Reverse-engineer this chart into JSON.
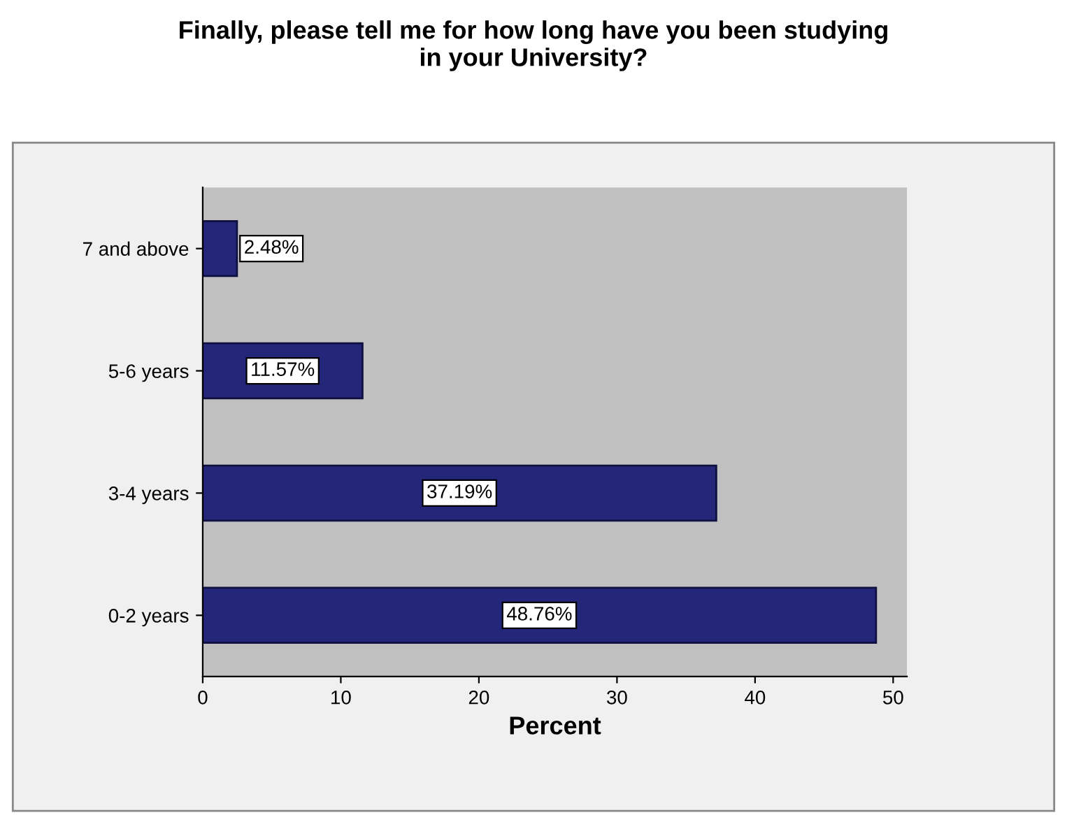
{
  "chart_data": {
    "type": "bar",
    "orientation": "horizontal",
    "title": "Finally, please tell me for how long have you been studying\nin your University?",
    "xlabel": "Percent",
    "categories": [
      "7 and above",
      "5-6 years",
      "3-4 years",
      "0-2 years"
    ],
    "values": [
      2.48,
      11.57,
      37.19,
      48.76
    ],
    "value_labels": [
      "2.48%",
      "11.57%",
      "37.19%",
      "48.76%"
    ],
    "color": "#24267a",
    "xlim": [
      0,
      51
    ],
    "xticks": [
      0,
      10,
      20,
      30,
      40,
      50
    ]
  }
}
